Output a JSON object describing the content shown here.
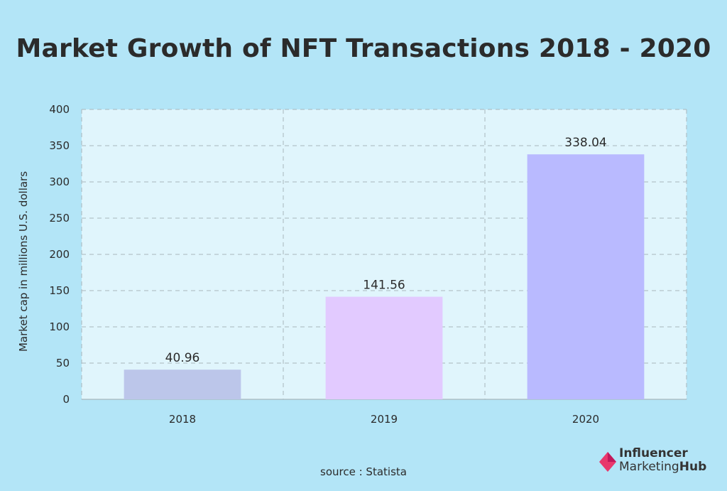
{
  "chart_data": {
    "type": "bar",
    "title": "Market Growth of NFT Transactions 2018 - 2020",
    "categories": [
      "2018",
      "2019",
      "2020"
    ],
    "values": [
      40.96,
      141.56,
      338.04
    ],
    "data_labels": [
      "40.96",
      "141.56",
      "338.04"
    ],
    "bar_colors": [
      "#bcc6ea",
      "#e2caff",
      "#b9baff"
    ],
    "xlabel": "",
    "ylabel": "Market cap in millions U.S. dollars",
    "ylim": [
      0,
      400
    ],
    "yticks": [
      0,
      50,
      100,
      150,
      200,
      250,
      300,
      350,
      400
    ],
    "grid": true,
    "plot_bg": "#e0f5fc",
    "background": "#b3e5f7",
    "grid_color": "#a9b6bd"
  },
  "footer": {
    "source": "source : Statista"
  },
  "logo": {
    "line1": "Influencer",
    "line2_a": "Marketing",
    "line2_b": "Hub",
    "mark_color": "#e8386c"
  }
}
